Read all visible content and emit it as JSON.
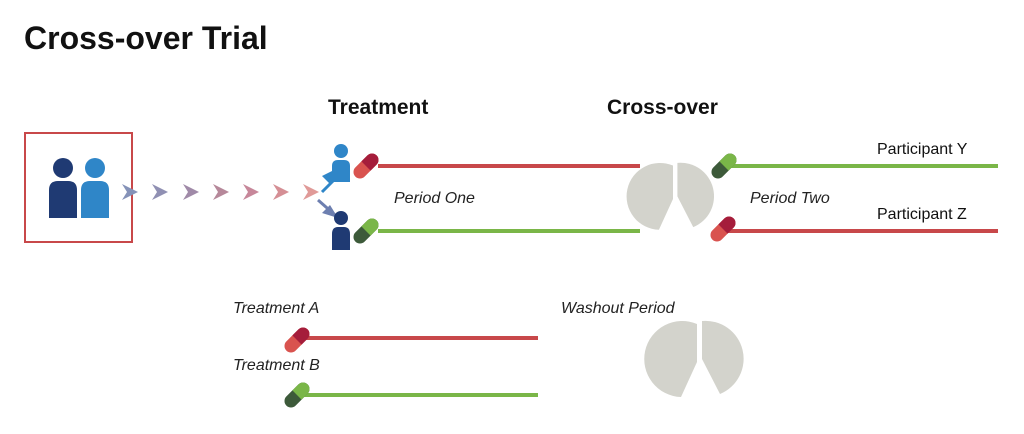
{
  "title": "Cross-over Trial",
  "phases": {
    "treatment": "Treatment",
    "crossover": "Cross-over"
  },
  "periods": {
    "one": "Period One",
    "two": "Period Two"
  },
  "participants": {
    "y": "Participant Y",
    "z": "Participant Z"
  },
  "legend": {
    "treatment_a": "Treatment A",
    "treatment_b": "Treatment B",
    "washout": "Washout Period"
  },
  "colors": {
    "treatment_a": "#c8484a",
    "treatment_b": "#7ab648",
    "pill_a_dark": "#a51d3b",
    "pill_a_light": "#d9534f",
    "pill_b_dark": "#3d5a3a",
    "pill_b_light": "#7ab648",
    "washout": "#d3d3cc",
    "box_border": "#c8484a",
    "person_dark": "#1f3a73",
    "person_light": "#2f86c8"
  },
  "icons": [
    "people-group-icon",
    "person-icon",
    "pill-icon",
    "washout-pie-icon",
    "chevron-icon"
  ]
}
